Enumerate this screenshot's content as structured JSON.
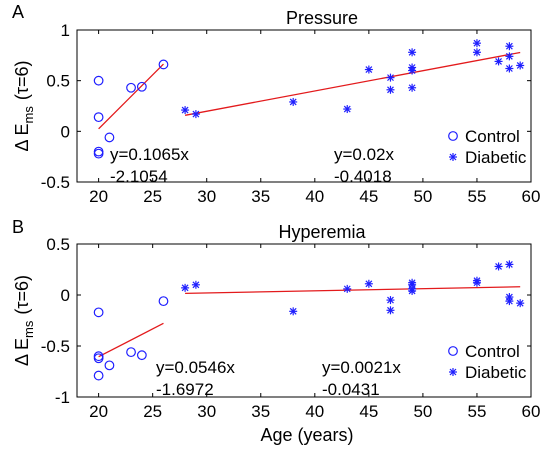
{
  "colors": {
    "control": "#1f1fff",
    "diabetic": "#1f1fff",
    "fit": "#e31a1c",
    "axes": "#000000"
  },
  "chart_data": [
    {
      "type": "scatter",
      "panel_label": "A",
      "title": "Pressure",
      "xlabel": "",
      "ylabel_main": "Δ E",
      "ylabel_sub": "ms",
      "ylabel_paren": "(τ=6)",
      "xlim": [
        18,
        60
      ],
      "ylim": [
        -0.5,
        1
      ],
      "xticks": [
        "20",
        "25",
        "30",
        "35",
        "40",
        "45",
        "50",
        "55",
        "60"
      ],
      "yticks": [
        "-0.5",
        "0",
        "0.5",
        "1"
      ],
      "legend": {
        "position": "bottom-right",
        "entries": [
          {
            "label": "Control",
            "marker": "circle"
          },
          {
            "label": "Diabetic",
            "marker": "asterisk"
          }
        ]
      },
      "series": [
        {
          "name": "Control",
          "marker": "circle",
          "points": [
            [
              20,
              0.5
            ],
            [
              20,
              0.14
            ],
            [
              20,
              -0.2
            ],
            [
              20,
              -0.22
            ],
            [
              21,
              -0.06
            ],
            [
              23,
              0.43
            ],
            [
              24,
              0.44
            ],
            [
              26,
              0.66
            ]
          ]
        },
        {
          "name": "Diabetic",
          "marker": "asterisk",
          "points": [
            [
              28,
              0.21
            ],
            [
              29,
              0.17
            ],
            [
              38,
              0.29
            ],
            [
              43,
              0.22
            ],
            [
              45,
              0.61
            ],
            [
              47,
              0.53
            ],
            [
              47,
              0.41
            ],
            [
              49,
              0.78
            ],
            [
              49,
              0.63
            ],
            [
              49,
              0.6
            ],
            [
              49,
              0.43
            ],
            [
              55,
              0.87
            ],
            [
              55,
              0.78
            ],
            [
              57,
              0.69
            ],
            [
              58,
              0.84
            ],
            [
              58,
              0.74
            ],
            [
              58,
              0.62
            ],
            [
              59,
              0.65
            ]
          ]
        }
      ],
      "fits": [
        {
          "x_range": [
            20,
            26
          ],
          "slope": 0.1065,
          "intercept": -2.1054,
          "label_lines": [
            "y=0.1065x",
            "-2.1054"
          ]
        },
        {
          "x_range": [
            28,
            59
          ],
          "slope": 0.02,
          "intercept": -0.4018,
          "label_lines": [
            "y=0.02x",
            "-0.4018"
          ]
        }
      ]
    },
    {
      "type": "scatter",
      "panel_label": "B",
      "title": "Hyperemia",
      "xlabel": "Age (years)",
      "ylabel_main": "Δ E",
      "ylabel_sub": "ms",
      "ylabel_paren": "(τ=6)",
      "xlim": [
        18,
        60
      ],
      "ylim": [
        -1,
        0.5
      ],
      "xticks": [
        "20",
        "25",
        "30",
        "35",
        "40",
        "45",
        "50",
        "55",
        "60"
      ],
      "yticks": [
        "-1",
        "-0.5",
        "0",
        "0.5"
      ],
      "legend": {
        "position": "bottom-right",
        "entries": [
          {
            "label": "Control",
            "marker": "circle"
          },
          {
            "label": "Diabetic",
            "marker": "asterisk"
          }
        ]
      },
      "series": [
        {
          "name": "Control",
          "marker": "circle",
          "points": [
            [
              20,
              -0.17
            ],
            [
              20,
              -0.6
            ],
            [
              20,
              -0.62
            ],
            [
              20,
              -0.79
            ],
            [
              21,
              -0.69
            ],
            [
              23,
              -0.56
            ],
            [
              24,
              -0.59
            ],
            [
              26,
              -0.06
            ]
          ]
        },
        {
          "name": "Diabetic",
          "marker": "asterisk",
          "points": [
            [
              28,
              0.07
            ],
            [
              29,
              0.1
            ],
            [
              38,
              -0.16
            ],
            [
              43,
              0.06
            ],
            [
              45,
              0.11
            ],
            [
              47,
              -0.05
            ],
            [
              47,
              -0.15
            ],
            [
              49,
              0.12
            ],
            [
              49,
              0.1
            ],
            [
              49,
              0.06
            ],
            [
              49,
              0.04
            ],
            [
              55,
              0.14
            ],
            [
              55,
              0.12
            ],
            [
              57,
              0.28
            ],
            [
              58,
              0.3
            ],
            [
              58,
              -0.02
            ],
            [
              58,
              -0.06
            ],
            [
              59,
              -0.08
            ]
          ]
        }
      ],
      "fits": [
        {
          "x_range": [
            20,
            26
          ],
          "slope": 0.0546,
          "intercept": -1.6972,
          "label_lines": [
            "y=0.0546x",
            "-1.6972"
          ]
        },
        {
          "x_range": [
            28,
            59
          ],
          "slope": 0.0021,
          "intercept": -0.0431,
          "label_lines": [
            "y=0.0021x",
            "-0.0431"
          ]
        }
      ]
    }
  ]
}
